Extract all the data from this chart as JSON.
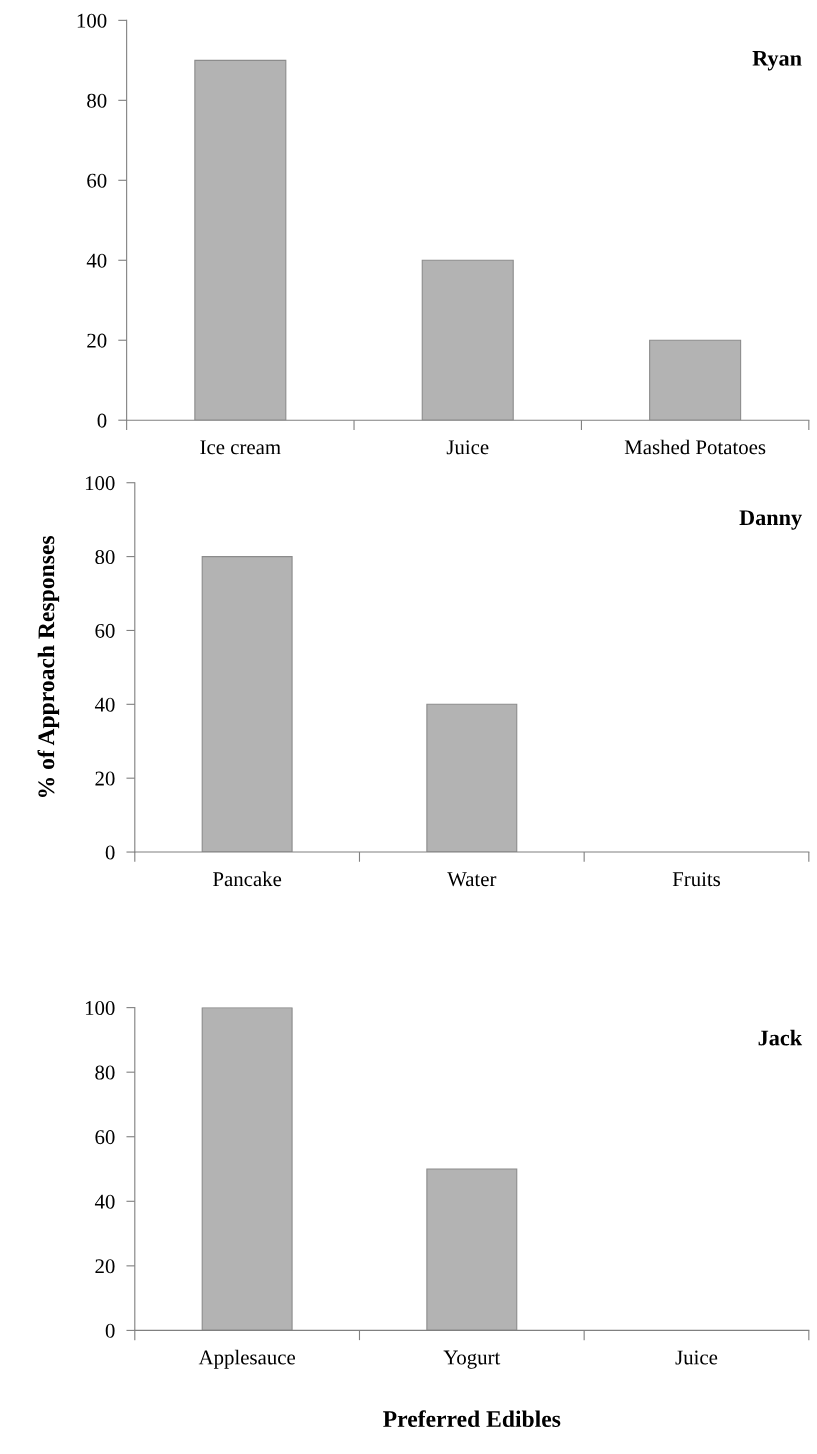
{
  "chart_data": [
    {
      "type": "bar",
      "title": "Ryan",
      "categories": [
        "Ice cream",
        "Juice",
        "Mashed Potatoes"
      ],
      "values": [
        90,
        40,
        20
      ],
      "color": "#b3b3b3",
      "ylim": [
        0,
        100
      ],
      "yticks": [
        0,
        20,
        40,
        60,
        80,
        100
      ],
      "grid": false,
      "legend": false
    },
    {
      "type": "bar",
      "title": "Danny",
      "ylabel": "% of Approach Responses",
      "categories": [
        "Pancake",
        "Water",
        "Fruits"
      ],
      "values": [
        80,
        40,
        0
      ],
      "color": "#b3b3b3",
      "ylim": [
        0,
        100
      ],
      "yticks": [
        0,
        20,
        40,
        60,
        80,
        100
      ],
      "grid": false,
      "legend": false
    },
    {
      "type": "bar",
      "title": "Jack",
      "xlabel": "Preferred Edibles",
      "categories": [
        "Applesauce",
        "Yogurt",
        "Juice"
      ],
      "values": [
        100,
        50,
        0
      ],
      "color": "#b3b3b3",
      "ylim": [
        0,
        100
      ],
      "yticks": [
        0,
        20,
        40,
        60,
        80,
        100
      ],
      "grid": false,
      "legend": false
    }
  ]
}
